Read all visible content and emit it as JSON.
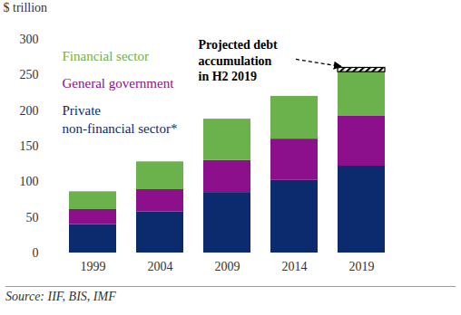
{
  "chart_data": {
    "type": "bar",
    "stacked": true,
    "grid": false,
    "y_label": "$ trillion",
    "categories": [
      "1999",
      "2004",
      "2009",
      "2014",
      "2019"
    ],
    "ylim": [
      0,
      300
    ],
    "yticks": [
      0,
      50,
      100,
      150,
      200,
      250,
      300
    ],
    "series": [
      {
        "name": "Private\nnon-financial sector*",
        "color": "#0b2b6e",
        "values": [
          40,
          58,
          85,
          102,
          122
        ]
      },
      {
        "name": "General government",
        "color": "#8c0f8c",
        "values": [
          21,
          31,
          45,
          58,
          70
        ]
      },
      {
        "name": "Financial sector",
        "color": "#6cb24c",
        "values": [
          25,
          39,
          58,
          60,
          62
        ]
      },
      {
        "name": "Projected debt\naccumulation\nin H2 2019",
        "color": "#000000",
        "marker": "hatched",
        "values": [
          null,
          null,
          null,
          null,
          6
        ]
      }
    ],
    "source": "Source: IIF, BIS, IMF"
  }
}
